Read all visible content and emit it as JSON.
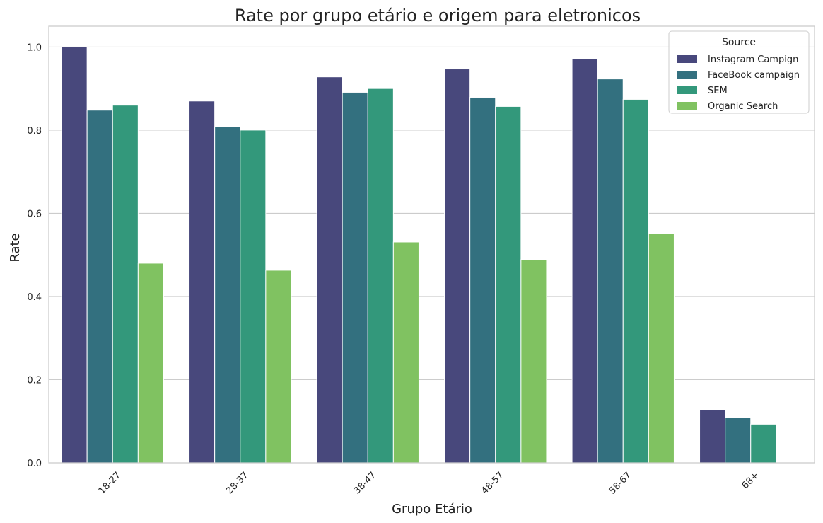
{
  "chart_data": {
    "type": "bar",
    "title": "Rate por grupo etário e origem para eletronicos",
    "xlabel": "Grupo Etário",
    "ylabel": "Rate",
    "categories": [
      "18-27",
      "28-37",
      "38-47",
      "48-57",
      "58-67",
      "68+"
    ],
    "ylim": [
      0,
      1.05
    ],
    "yticks": [
      "0.0",
      "0.2",
      "0.4",
      "0.6",
      "0.8",
      "1.0"
    ],
    "grid": "horizontal",
    "legend": {
      "title": "Source",
      "position": "top-right"
    },
    "series": [
      {
        "name": "Instagram Campign",
        "color": "#48487c",
        "values": [
          1.0,
          0.87,
          0.928,
          0.947,
          0.972,
          0.127
        ]
      },
      {
        "name": "FaceBook campaign",
        "color": "#33707f",
        "values": [
          0.848,
          0.808,
          0.891,
          0.879,
          0.923,
          0.109
        ]
      },
      {
        "name": "SEM",
        "color": "#33987b",
        "values": [
          0.86,
          0.8,
          0.9,
          0.857,
          0.874,
          0.093
        ]
      },
      {
        "name": "Organic Search",
        "color": "#80c261",
        "values": [
          0.48,
          0.463,
          0.531,
          0.489,
          0.552,
          null
        ]
      }
    ]
  }
}
